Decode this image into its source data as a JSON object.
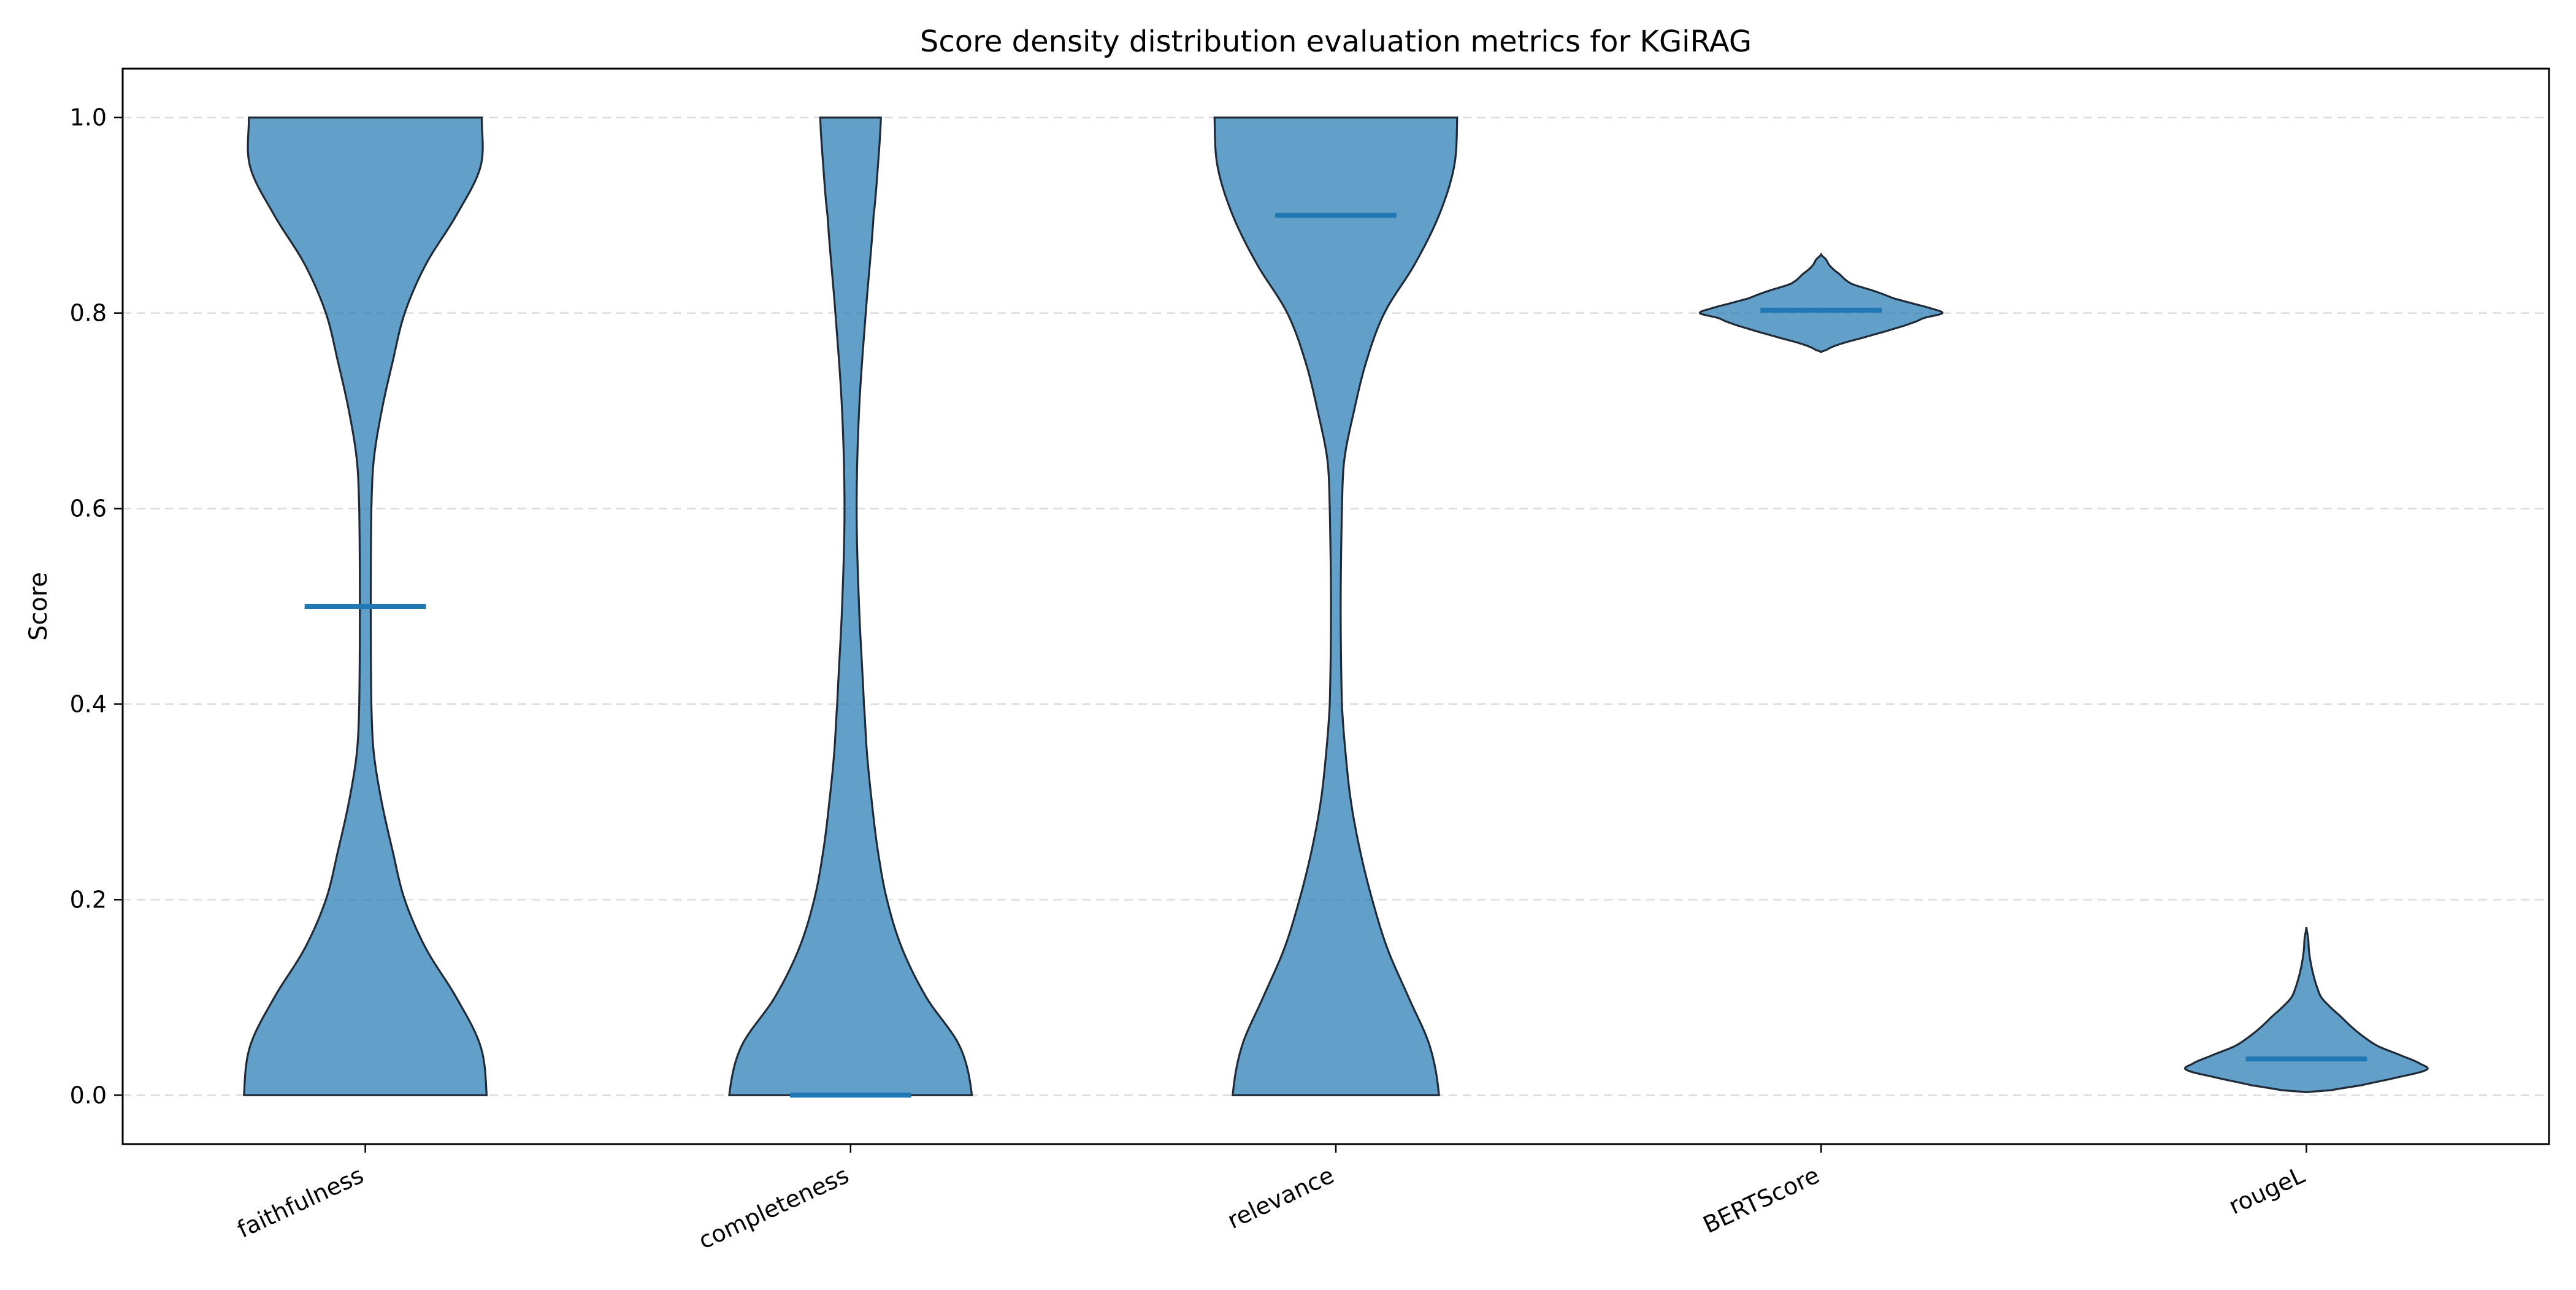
{
  "chart_data": {
    "type": "violin",
    "title": "Score density distribution evaluation metrics for KGiRAG",
    "xlabel": "",
    "ylabel": "Score",
    "ylim": [
      -0.05,
      1.05
    ],
    "yticks": [
      0.0,
      0.2,
      0.4,
      0.6,
      0.8,
      1.0
    ],
    "ytick_labels": [
      "0.0",
      "0.2",
      "0.4",
      "0.6",
      "0.8",
      "1.0"
    ],
    "grid": "horizontal-dashed",
    "fill_color": "#1f77b4",
    "median_color": "#1f77b4",
    "categories": [
      "faithfulness",
      "completeness",
      "relevance",
      "BERTScore",
      "rougeL"
    ],
    "series": [
      {
        "category": "faithfulness",
        "median": 0.5,
        "min": 0.0,
        "max": 1.0,
        "density_profile": [
          [
            0.0,
            0.2
          ],
          [
            0.05,
            0.19
          ],
          [
            0.1,
            0.15
          ],
          [
            0.15,
            0.1
          ],
          [
            0.2,
            0.065
          ],
          [
            0.25,
            0.045
          ],
          [
            0.3,
            0.027
          ],
          [
            0.35,
            0.014
          ],
          [
            0.4,
            0.01
          ],
          [
            0.5,
            0.009
          ],
          [
            0.6,
            0.01
          ],
          [
            0.65,
            0.014
          ],
          [
            0.7,
            0.027
          ],
          [
            0.75,
            0.045
          ],
          [
            0.8,
            0.065
          ],
          [
            0.85,
            0.1
          ],
          [
            0.9,
            0.15
          ],
          [
            0.95,
            0.19
          ],
          [
            1.0,
            0.192
          ]
        ]
      },
      {
        "category": "completeness",
        "median": 0.0,
        "min": 0.0,
        "max": 1.0,
        "density_profile": [
          [
            0.0,
            0.2
          ],
          [
            0.05,
            0.18
          ],
          [
            0.1,
            0.125
          ],
          [
            0.15,
            0.085
          ],
          [
            0.2,
            0.06
          ],
          [
            0.25,
            0.045
          ],
          [
            0.3,
            0.035
          ],
          [
            0.35,
            0.027
          ],
          [
            0.4,
            0.022
          ],
          [
            0.5,
            0.014
          ],
          [
            0.6,
            0.01
          ],
          [
            0.7,
            0.014
          ],
          [
            0.8,
            0.025
          ],
          [
            0.9,
            0.038
          ],
          [
            0.95,
            0.045
          ],
          [
            1.0,
            0.05
          ]
        ]
      },
      {
        "category": "relevance",
        "median": 0.9,
        "min": 0.0,
        "max": 1.0,
        "density_profile": [
          [
            0.0,
            0.17
          ],
          [
            0.05,
            0.155
          ],
          [
            0.1,
            0.12
          ],
          [
            0.15,
            0.085
          ],
          [
            0.2,
            0.06
          ],
          [
            0.25,
            0.04
          ],
          [
            0.3,
            0.025
          ],
          [
            0.35,
            0.016
          ],
          [
            0.4,
            0.01
          ],
          [
            0.5,
            0.008
          ],
          [
            0.6,
            0.01
          ],
          [
            0.65,
            0.014
          ],
          [
            0.7,
            0.03
          ],
          [
            0.75,
            0.05
          ],
          [
            0.8,
            0.08
          ],
          [
            0.85,
            0.13
          ],
          [
            0.9,
            0.17
          ],
          [
            0.95,
            0.195
          ],
          [
            1.0,
            0.2
          ]
        ]
      },
      {
        "category": "BERTScore",
        "median": 0.803,
        "min": 0.76,
        "max": 0.86,
        "density_profile": [
          [
            0.76,
            0.0
          ],
          [
            0.762,
            0.008
          ],
          [
            0.768,
            0.03
          ],
          [
            0.775,
            0.07
          ],
          [
            0.782,
            0.11
          ],
          [
            0.79,
            0.15
          ],
          [
            0.795,
            0.17
          ],
          [
            0.8,
            0.2
          ],
          [
            0.805,
            0.18
          ],
          [
            0.81,
            0.15
          ],
          [
            0.815,
            0.12
          ],
          [
            0.822,
            0.09
          ],
          [
            0.83,
            0.05
          ],
          [
            0.84,
            0.03
          ],
          [
            0.848,
            0.015
          ],
          [
            0.855,
            0.008
          ],
          [
            0.86,
            0.0
          ]
        ]
      },
      {
        "category": "rougeL",
        "median": 0.037,
        "min": 0.003,
        "max": 0.172,
        "density_profile": [
          [
            0.003,
            0.0
          ],
          [
            0.005,
            0.04
          ],
          [
            0.01,
            0.09
          ],
          [
            0.018,
            0.15
          ],
          [
            0.026,
            0.2
          ],
          [
            0.032,
            0.19
          ],
          [
            0.04,
            0.16
          ],
          [
            0.05,
            0.12
          ],
          [
            0.06,
            0.095
          ],
          [
            0.07,
            0.075
          ],
          [
            0.08,
            0.058
          ],
          [
            0.09,
            0.04
          ],
          [
            0.1,
            0.025
          ],
          [
            0.11,
            0.018
          ],
          [
            0.12,
            0.013
          ],
          [
            0.13,
            0.009
          ],
          [
            0.14,
            0.006
          ],
          [
            0.15,
            0.004
          ],
          [
            0.16,
            0.003
          ],
          [
            0.172,
            0.0
          ]
        ]
      }
    ]
  }
}
